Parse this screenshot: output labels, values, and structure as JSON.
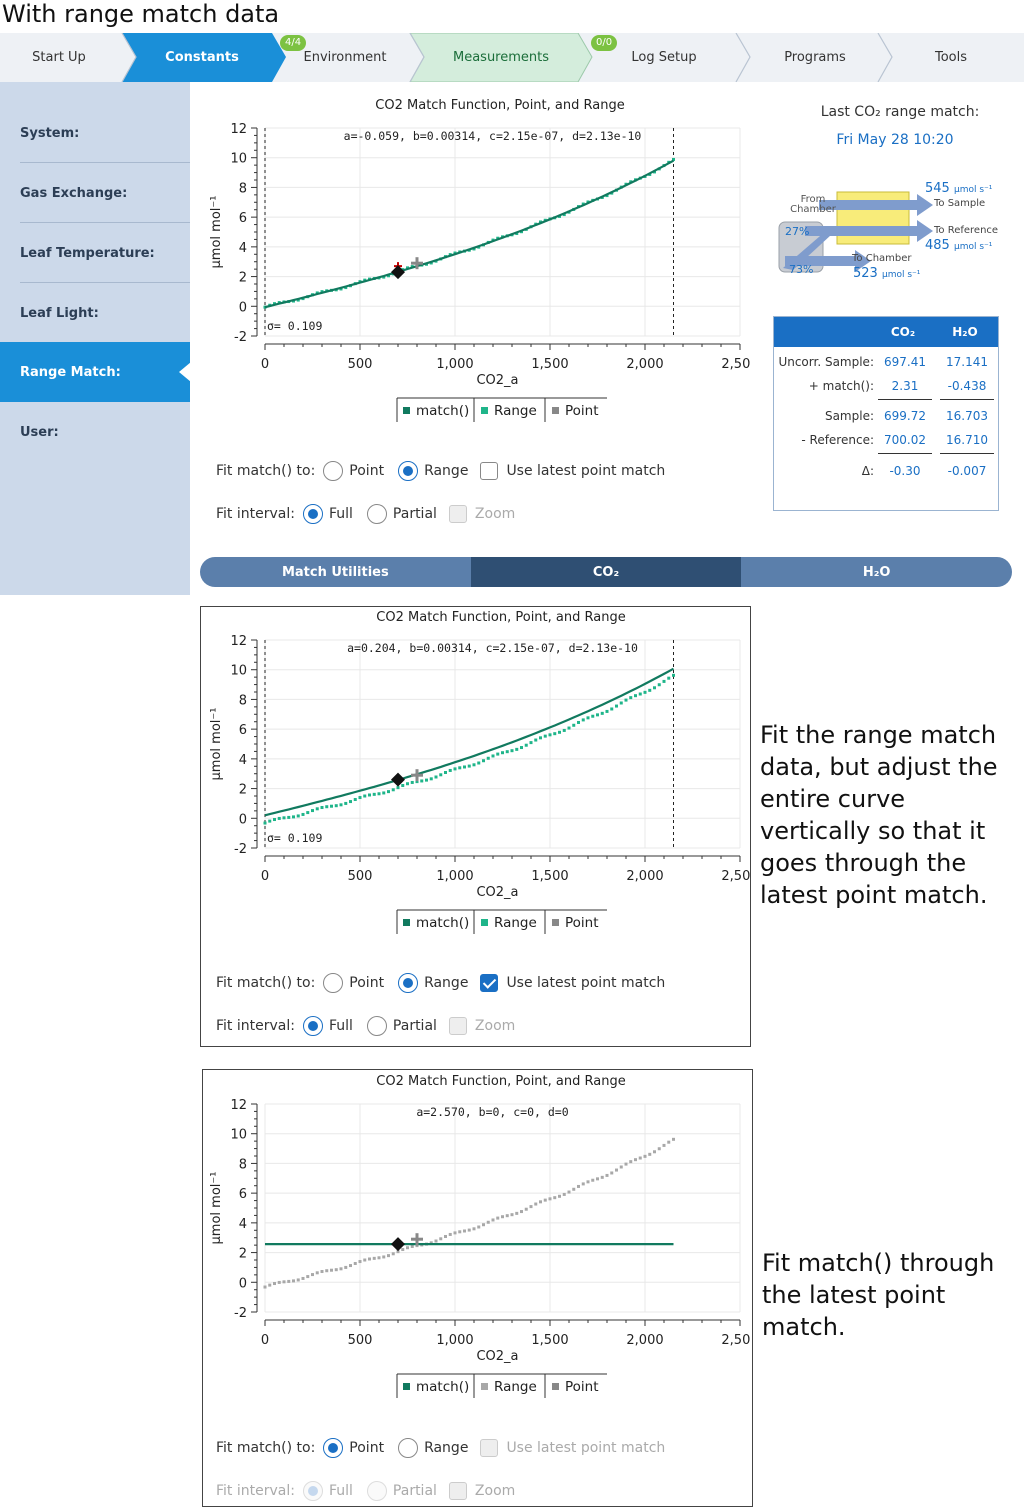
{
  "page_title": "With range match data",
  "tabs": [
    {
      "label": "Start Up",
      "badge": ""
    },
    {
      "label": "Constants",
      "badge": ""
    },
    {
      "label": "Environment",
      "badge": "4/4"
    },
    {
      "label": "Measurements",
      "badge": ""
    },
    {
      "label": "Log Setup",
      "badge": "0/0"
    },
    {
      "label": "Programs",
      "badge": ""
    },
    {
      "label": "Tools",
      "badge": ""
    }
  ],
  "sidebar": {
    "items": [
      {
        "label": "System:"
      },
      {
        "label": "Gas Exchange:"
      },
      {
        "label": "Leaf Temperature:"
      },
      {
        "label": "Leaf Light:"
      },
      {
        "label": "Range Match:"
      },
      {
        "label": "User:"
      }
    ]
  },
  "last_match": {
    "heading": "Last CO₂ range match:",
    "date": "Fri May 28 10:20"
  },
  "flow": {
    "from_chamber": "From Chamber",
    "pct_top": "27%",
    "pct_bottom": "73%",
    "to_sample_value": "545",
    "to_sample_unit": "µmol s⁻¹",
    "to_sample_label": "To Sample",
    "to_reference_label": "To Reference",
    "to_reference_value": "485",
    "to_reference_unit": "µmol s⁻¹",
    "to_chamber_label": "To Chamber",
    "to_chamber_value": "523",
    "to_chamber_unit": "µmol s⁻¹"
  },
  "values_table": {
    "col_co2": "CO₂",
    "col_h2o": "H₂O",
    "rows": [
      {
        "label": "Uncorr. Sample:",
        "co2": "697.41",
        "h2o": "17.141"
      },
      {
        "label": "+ match():",
        "co2": "2.31",
        "h2o": "-0.438"
      },
      {
        "label": "Sample:",
        "co2": "699.72",
        "h2o": "16.703"
      },
      {
        "label": "- Reference:",
        "co2": "700.02",
        "h2o": "16.710"
      },
      {
        "label": "Δ:",
        "co2": "-0.30",
        "h2o": "-0.007"
      }
    ]
  },
  "match_utilities": {
    "items": [
      {
        "label": "Match Utilities"
      },
      {
        "label": "CO₂"
      },
      {
        "label": "H₂O"
      }
    ],
    "active_index": 1
  },
  "labels": {
    "fit_match_to": "Fit match() to:",
    "point": "Point",
    "range": "Range",
    "use_latest": "Use latest point match",
    "fit_interval": "Fit interval:",
    "full": "Full",
    "partial": "Partial",
    "zoom": "Zoom"
  },
  "notes": {
    "panel2": "Fit the range match data, but adjust the entire curve vertically so that it goes through the latest point match.",
    "panel3": "Fit match() through the latest point match."
  },
  "colors": {
    "match_line": "#117a5f",
    "range_points": "#1fb58a",
    "point_marker": "#888888",
    "accent_blue": "#1a6fc4",
    "tab_active": "#1a8fd8",
    "tab_measure": "#d4eddc"
  },
  "chart_data": [
    {
      "type": "line",
      "title": "CO2 Match Function, Point, and Range",
      "equation": "a=-0.059, b=0.00314, c=2.15e-07, d=2.13e-10",
      "sigma": "σ= 0.109",
      "xlabel": "CO2_a",
      "ylabel": "µmol mol⁻¹",
      "xlim": [
        0,
        2500
      ],
      "ylim": [
        -2,
        12
      ],
      "xticks": [
        "0",
        "500",
        "1,000",
        "1,500",
        "2,000",
        "2,500"
      ],
      "yticks": [
        "-2",
        "0",
        "2",
        "4",
        "6",
        "8",
        "10",
        "12"
      ],
      "legend": [
        "match()",
        "Range",
        "Point"
      ],
      "range_active": true,
      "interval": [
        0,
        2150
      ],
      "match_coeffs": {
        "a": -0.059,
        "b": 0.00314,
        "c": 2.15e-07,
        "d": 2.13e-10
      },
      "range_offset": 0.0,
      "latest_point": {
        "x": 700,
        "y": 2.3
      },
      "point_match": {
        "x": 800,
        "y": 2.9
      }
    },
    {
      "type": "line",
      "title": "CO2 Match Function, Point, and Range",
      "equation": "a=0.204, b=0.00314, c=2.15e-07, d=2.13e-10",
      "sigma": "σ= 0.109",
      "xlabel": "CO2_a",
      "ylabel": "µmol mol⁻¹",
      "xlim": [
        0,
        2500
      ],
      "ylim": [
        -2,
        12
      ],
      "xticks": [
        "0",
        "500",
        "1,000",
        "1,500",
        "2,000",
        "2,500"
      ],
      "yticks": [
        "-2",
        "0",
        "2",
        "4",
        "6",
        "8",
        "10",
        "12"
      ],
      "legend": [
        "match()",
        "Range",
        "Point"
      ],
      "range_active": true,
      "interval": [
        0,
        2150
      ],
      "match_coeffs": {
        "a": 0.204,
        "b": 0.00314,
        "c": 2.15e-07,
        "d": 2.13e-10
      },
      "range_offset": -0.26,
      "latest_point": {
        "x": 700,
        "y": 2.6
      },
      "point_match": {
        "x": 800,
        "y": 2.9
      }
    },
    {
      "type": "line",
      "title": "CO2 Match Function, Point, and Range",
      "equation": "a=2.570, b=0, c=0, d=0",
      "sigma": "",
      "xlabel": "CO2_a",
      "ylabel": "µmol mol⁻¹",
      "xlim": [
        0,
        2500
      ],
      "ylim": [
        -2,
        12
      ],
      "xticks": [
        "0",
        "500",
        "1,000",
        "1,500",
        "2,000",
        "2,500"
      ],
      "yticks": [
        "-2",
        "0",
        "2",
        "4",
        "6",
        "8",
        "10",
        "12"
      ],
      "legend": [
        "match()",
        "Range",
        "Point"
      ],
      "range_active": false,
      "interval": [
        0,
        2150
      ],
      "match_coeffs": {
        "a": 2.57,
        "b": 0,
        "c": 0,
        "d": 0
      },
      "range_offset": -0.26,
      "latest_point": {
        "x": 700,
        "y": 2.57
      },
      "point_match": {
        "x": 800,
        "y": 2.9
      }
    }
  ]
}
